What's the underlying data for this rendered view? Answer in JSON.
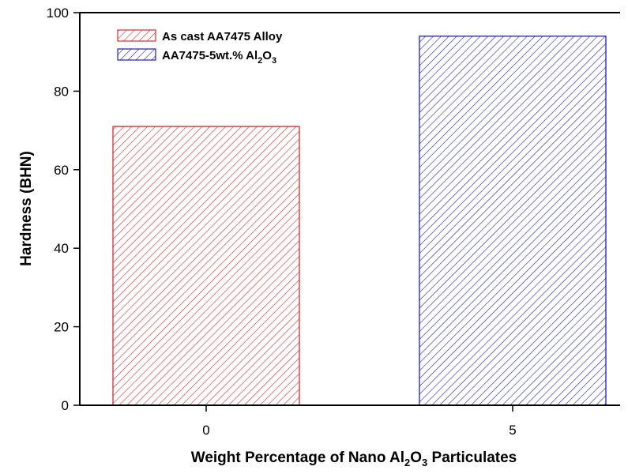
{
  "chart_data": {
    "type": "bar",
    "title": "",
    "xlabel": {
      "text": "Weight Percentage of Nano Al2O3 Particulates",
      "segments": [
        {
          "text": "Weight Percentage of Nano Al",
          "sub": false
        },
        {
          "text": "2",
          "sub": true
        },
        {
          "text": "O",
          "sub": false
        },
        {
          "text": "3",
          "sub": true
        },
        {
          "text": " Particulates",
          "sub": false
        }
      ]
    },
    "ylabel": "Hardness (BHN)",
    "categories": [
      "0",
      "5"
    ],
    "ylim": [
      0,
      100
    ],
    "yticks": [
      "0",
      "20",
      "40",
      "60",
      "80",
      "100"
    ],
    "series": [
      {
        "name": "As cast AA7475 Alloy",
        "segments": [
          {
            "text": "As cast AA7475 Alloy",
            "sub": false
          }
        ],
        "category": "0",
        "value": 71,
        "color": "#e8242a",
        "pattern": "diagonal-hatch"
      },
      {
        "name": "AA7475-5wt.% Al2O3",
        "segments": [
          {
            "text": "AA7475-5wt.% Al",
            "sub": false
          },
          {
            "text": "2",
            "sub": true
          },
          {
            "text": "O",
            "sub": false
          },
          {
            "text": "3",
            "sub": true
          }
        ],
        "category": "5",
        "value": 94,
        "color": "#1c1cd8",
        "pattern": "diagonal-hatch"
      }
    ],
    "grid": false,
    "legend_position": "top-left"
  }
}
